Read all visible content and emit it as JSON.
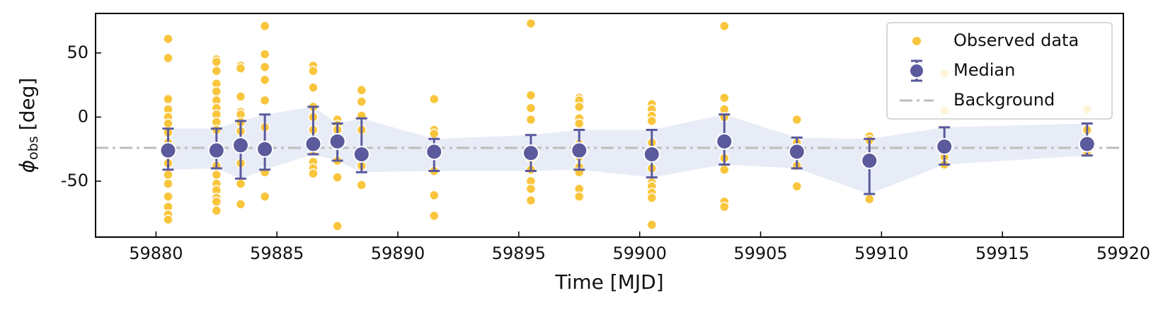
{
  "chart_data": {
    "type": "errorbar",
    "xlabel": "Time [MJD]",
    "ylabel": "ϕ",
    "ylabel_sub": "obs",
    "ylabel_unit": "[deg]",
    "xlim": [
      59877.5,
      59920
    ],
    "xticks": [
      59880,
      59885,
      59890,
      59895,
      59900,
      59905,
      59910,
      59915,
      59920
    ],
    "ylim": [
      -93.6,
      80.8
    ],
    "yticks": [
      -50,
      0,
      50
    ],
    "legend": "upper right",
    "band_color": "#e8ecf7",
    "series": [
      {
        "name": "Observed data",
        "kind": "scatter",
        "color": "#f9c53c",
        "groups": [
          {
            "x": 59880.5,
            "values": [
              61,
              46,
              15,
              14,
              6,
              0,
              -5,
              -12,
              -20,
              -36,
              -45,
              -52,
              -62,
              -70,
              -76,
              -80
            ]
          },
          {
            "x": 59882.5,
            "values": [
              45,
              43,
              36,
              26,
              20,
              13,
              7,
              2,
              -4,
              -10,
              -23,
              -38,
              -45,
              -52,
              -57,
              -63,
              -66,
              -73
            ]
          },
          {
            "x": 59883.5,
            "values": [
              40,
              38,
              16,
              4,
              2,
              -4,
              -11,
              -20,
              -36,
              -52,
              -68
            ]
          },
          {
            "x": 59884.5,
            "values": [
              71,
              49,
              39,
              29,
              13,
              -8,
              -43,
              -62
            ]
          },
          {
            "x": 59886.5,
            "values": [
              40,
              36,
              23,
              8,
              0,
              -10,
              -26,
              -35,
              -40,
              -44
            ]
          },
          {
            "x": 59887.5,
            "values": [
              -2,
              -6,
              -10,
              -34,
              -47,
              -85
            ]
          },
          {
            "x": 59888.5,
            "values": [
              22,
              21,
              12,
              1,
              -10,
              -38,
              -53
            ]
          },
          {
            "x": 59891.5,
            "values": [
              14,
              -10,
              -13,
              -25,
              -42,
              -61,
              -77
            ]
          },
          {
            "x": 59895.5,
            "values": [
              73,
              17,
              7,
              -2,
              -32,
              -41,
              -50,
              -56,
              -65
            ]
          },
          {
            "x": 59897.5,
            "values": [
              15,
              13,
              8,
              -1,
              -5,
              -21,
              -31,
              -39,
              -43,
              -56,
              -62
            ]
          },
          {
            "x": 59900.5,
            "values": [
              10,
              6,
              1,
              -3,
              -20,
              -28,
              -40,
              -51,
              -54,
              -59,
              -63,
              -84
            ]
          },
          {
            "x": 59903.5,
            "values": [
              71,
              15,
              6,
              0,
              -32,
              -41,
              -66,
              -70
            ]
          },
          {
            "x": 59906.5,
            "values": [
              -2,
              -20,
              -38,
              -54
            ]
          },
          {
            "x": 59909.5,
            "values": [
              -15,
              -18,
              -64
            ]
          },
          {
            "x": 59912.6,
            "values": [
              34,
              5,
              -31,
              -37
            ]
          },
          {
            "x": 59918.5,
            "values": [
              6,
              -10,
              -27
            ]
          }
        ]
      },
      {
        "name": "Median",
        "kind": "errorbar",
        "color": "#5b5a9c",
        "x": [
          59880.5,
          59882.5,
          59883.5,
          59884.5,
          59886.5,
          59887.5,
          59888.5,
          59891.5,
          59895.5,
          59897.5,
          59900.5,
          59903.5,
          59906.5,
          59909.5,
          59912.6,
          59918.5
        ],
        "values": [
          -26,
          -26,
          -22,
          -25,
          -21,
          -19,
          -29,
          -27,
          -28,
          -26,
          -29,
          -19,
          -27,
          -34,
          -23,
          -21
        ],
        "upper": [
          -9,
          -9,
          -3,
          2,
          8,
          -5,
          -1,
          -17,
          -14,
          -10,
          -10,
          2,
          -16,
          -17,
          -8,
          -5
        ],
        "lower": [
          -41,
          -40,
          -48,
          -41,
          -29,
          -34,
          -43,
          -42,
          -42,
          -41,
          -47,
          -37,
          -40,
          -60,
          -37,
          -30
        ]
      },
      {
        "name": "Background",
        "kind": "hline",
        "color": "#bdbdbd",
        "value": -24
      }
    ]
  }
}
